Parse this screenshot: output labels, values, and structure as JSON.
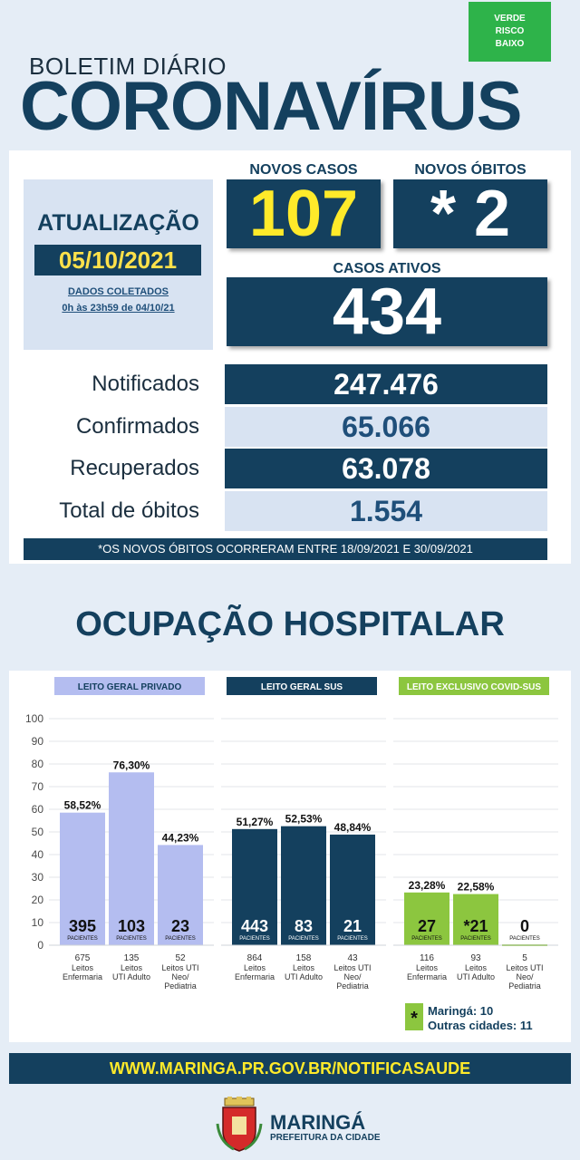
{
  "header": {
    "risk_badge": [
      "VERDE",
      "RISCO",
      "BAIXO"
    ],
    "subtitle": "BOLETIM DIÁRIO",
    "title": "CORONAVÍRUS"
  },
  "update": {
    "label": "ATUALIZAÇÃO",
    "date": "05/10/2021",
    "collected_line1": "DADOS COLETADOS",
    "collected_line2": "0h às 23h59 de 04/10/21"
  },
  "highlights": {
    "new_cases_label": "NOVOS CASOS",
    "new_cases": "107",
    "new_deaths_label": "NOVOS ÓBITOS",
    "new_deaths": "* 2",
    "active_label": "CASOS ATIVOS",
    "active": "434"
  },
  "stats": [
    {
      "label": "Notificados",
      "value": "247.476"
    },
    {
      "label": "Confirmados",
      "value": "65.066"
    },
    {
      "label": "Recuperados",
      "value": "63.078"
    },
    {
      "label": "Total de óbitos",
      "value": "1.554"
    }
  ],
  "note": "*OS NOVOS ÓBITOS OCORRERAM ENTRE 18/09/2021 E 30/09/2021",
  "section_title": "OCUPAÇÃO HOSPITALAR",
  "colors": {
    "navy": "#14405e",
    "lavender": "#b4bdf0",
    "green": "#8cc63f",
    "yellow": "#ffea2a"
  },
  "chart_data": {
    "type": "bar",
    "ylim": [
      0,
      100
    ],
    "yticks": [
      0,
      10,
      20,
      30,
      40,
      50,
      60,
      70,
      80,
      90,
      100
    ],
    "patients_label": "PACIENTES",
    "groups": [
      {
        "name": "LEITO GERAL PRIVADO",
        "color": "#b4bdf0",
        "bars": [
          {
            "pct": 58.52,
            "pct_label": "58,52%",
            "patients": "395",
            "beds": "675",
            "desc": [
              "Leitos",
              "Enfermaria"
            ]
          },
          {
            "pct": 76.3,
            "pct_label": "76,30%",
            "patients": "103",
            "beds": "135",
            "desc": [
              "Leitos",
              "UTI Adulto"
            ]
          },
          {
            "pct": 44.23,
            "pct_label": "44,23%",
            "patients": "23",
            "beds": "52",
            "desc": [
              "Leitos UTI",
              "Neo/",
              "Pediatria"
            ]
          }
        ]
      },
      {
        "name": "LEITO GERAL SUS",
        "color": "#14405e",
        "bars": [
          {
            "pct": 51.27,
            "pct_label": "51,27%",
            "patients": "443",
            "beds": "864",
            "desc": [
              "Leitos",
              "Enfermaria"
            ]
          },
          {
            "pct": 52.53,
            "pct_label": "52,53%",
            "patients": "83",
            "beds": "158",
            "desc": [
              "Leitos",
              "UTI Adulto"
            ]
          },
          {
            "pct": 48.84,
            "pct_label": "48,84%",
            "patients": "21",
            "beds": "43",
            "desc": [
              "Leitos UTI",
              "Neo/",
              "Pediatria"
            ]
          }
        ]
      },
      {
        "name": "LEITO EXCLUSIVO COVID-SUS",
        "color": "#8cc63f",
        "bars": [
          {
            "pct": 23.28,
            "pct_label": "23,28%",
            "patients": "27",
            "beds": "116",
            "desc": [
              "Leitos",
              "Enfermaria"
            ]
          },
          {
            "pct": 22.58,
            "pct_label": "22,58%",
            "patients": "*21",
            "beds": "93",
            "desc": [
              "Leitos",
              "UTI Adulto"
            ]
          },
          {
            "pct": 0,
            "pct_label": "",
            "patients": "0",
            "beds": "5",
            "desc": [
              "Leitos UTI",
              "Neo/",
              "Pediatria"
            ]
          }
        ]
      }
    ],
    "legend": {
      "marker": "*",
      "line1": "Maringá: 10",
      "line2": "Outras cidades: 11"
    }
  },
  "footer": {
    "url": "WWW.MARINGA.PR.GOV.BR/NOTIFICASAUDE",
    "city": "MARINGÁ",
    "org": "PREFEITURA DA CIDADE"
  }
}
